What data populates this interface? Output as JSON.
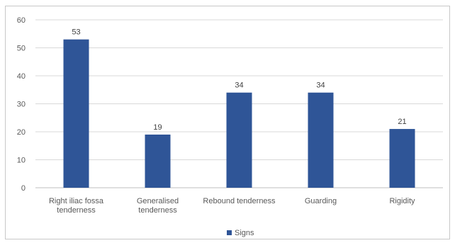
{
  "chart_data": {
    "type": "bar",
    "categories": [
      [
        "Right iliac fossa",
        "tenderness"
      ],
      [
        "Generalised",
        "tenderness"
      ],
      [
        "Rebound tenderness"
      ],
      [
        "Guarding"
      ],
      [
        "Rigidity"
      ]
    ],
    "series": [
      {
        "name": "Signs",
        "values": [
          53,
          19,
          34,
          34,
          21
        ],
        "color": "#2f5597"
      }
    ],
    "title": "",
    "xlabel": "",
    "ylabel": "",
    "ylim": [
      0,
      60
    ],
    "yticks": [
      0,
      10,
      20,
      30,
      40,
      50,
      60
    ],
    "grid": true,
    "legend_position": "bottom-center",
    "data_labels": true
  }
}
